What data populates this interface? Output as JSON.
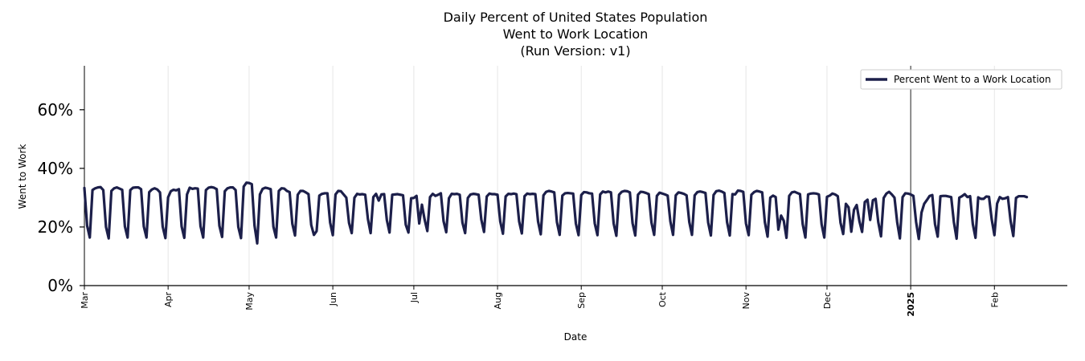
{
  "chart_data": {
    "type": "line",
    "title_lines": [
      "Daily Percent of United States Population",
      "Went to Work Location",
      "(Run Version: v1)"
    ],
    "xlabel": "Date",
    "ylabel": "Went to Work",
    "ylim": [
      0,
      75
    ],
    "y_ticks": [
      {
        "value": 0,
        "label": "0%"
      },
      {
        "value": 20,
        "label": "20%"
      },
      {
        "value": 40,
        "label": "40%"
      },
      {
        "value": 60,
        "label": "60%"
      }
    ],
    "x_range_days": [
      0,
      364
    ],
    "x_ticks": [
      {
        "day": 0,
        "label": "Mar"
      },
      {
        "day": 31,
        "label": "Apr"
      },
      {
        "day": 61,
        "label": "May"
      },
      {
        "day": 92,
        "label": "Jun"
      },
      {
        "day": 122,
        "label": "Jul"
      },
      {
        "day": 153,
        "label": "Aug"
      },
      {
        "day": 184,
        "label": "Sep"
      },
      {
        "day": 214,
        "label": "Oct"
      },
      {
        "day": 245,
        "label": "Nov"
      },
      {
        "day": 275,
        "label": "Dec"
      },
      {
        "day": 306,
        "label": "2025",
        "bold": true
      },
      {
        "day": 337,
        "label": "Feb"
      }
    ],
    "vline_day": 306,
    "grid_x": true,
    "legend": {
      "position": "top-right"
    },
    "series": [
      {
        "name": "Percent Went to a Work Location",
        "color": "#1c1f4a",
        "values": [
          33.3,
          20.5,
          16.4,
          32.6,
          33.2,
          33.5,
          33.6,
          32.6,
          20.0,
          16.1,
          32.3,
          33.2,
          33.5,
          33.1,
          32.7,
          20.2,
          16.4,
          32.6,
          33.4,
          33.5,
          33.5,
          32.9,
          20.2,
          16.4,
          31.9,
          32.8,
          33.2,
          32.8,
          31.8,
          20.1,
          16.2,
          30.1,
          32.2,
          32.7,
          32.5,
          32.9,
          20.2,
          16.3,
          31.1,
          33.4,
          33.0,
          33.2,
          33.1,
          20.3,
          16.4,
          32.6,
          33.4,
          33.6,
          33.4,
          32.9,
          20.4,
          16.6,
          32.2,
          33.2,
          33.5,
          33.5,
          32.6,
          20.0,
          16.2,
          33.8,
          35.1,
          35.0,
          34.6,
          20.5,
          14.4,
          31.1,
          33.0,
          33.4,
          33.2,
          32.9,
          20.1,
          16.4,
          32.3,
          33.2,
          33.1,
          32.3,
          31.9,
          21.1,
          17.1,
          31.0,
          32.3,
          32.3,
          31.8,
          31.2,
          20.7,
          17.3,
          18.6,
          30.7,
          31.3,
          31.5,
          31.5,
          21.5,
          17.2,
          31.1,
          32.3,
          32.2,
          31.1,
          30.0,
          21.4,
          17.9,
          30.0,
          31.3,
          31.1,
          31.2,
          31.0,
          22.7,
          17.9,
          30.2,
          31.3,
          29.0,
          31.1,
          31.2,
          22.4,
          18.1,
          31.0,
          31.1,
          31.2,
          31.0,
          30.8,
          20.8,
          18.1,
          29.8,
          29.9,
          30.6,
          21.2,
          27.6,
          22.5,
          18.6,
          30.2,
          31.3,
          30.6,
          31.0,
          31.5,
          22.0,
          18.2,
          29.8,
          31.3,
          31.2,
          31.3,
          31.0,
          21.5,
          17.9,
          29.9,
          31.1,
          31.3,
          31.2,
          31.0,
          22.5,
          18.3,
          30.4,
          31.4,
          31.2,
          31.2,
          31.0,
          21.9,
          17.7,
          30.4,
          31.3,
          31.2,
          31.4,
          31.2,
          21.9,
          17.8,
          30.5,
          31.4,
          31.2,
          31.3,
          31.2,
          21.9,
          17.5,
          30.8,
          32.0,
          32.3,
          32.1,
          31.8,
          21.6,
          17.3,
          30.7,
          31.5,
          31.6,
          31.5,
          31.4,
          21.2,
          17.2,
          30.9,
          31.9,
          31.8,
          31.5,
          31.4,
          21.2,
          17.2,
          31.1,
          32.1,
          31.8,
          32.1,
          31.8,
          21.2,
          17.0,
          31.0,
          32.0,
          32.3,
          32.2,
          31.8,
          21.3,
          17.1,
          31.0,
          32.0,
          31.9,
          31.6,
          31.2,
          21.5,
          17.3,
          30.6,
          31.7,
          31.4,
          31.1,
          30.7,
          21.9,
          17.3,
          30.8,
          31.8,
          31.6,
          31.3,
          30.8,
          21.7,
          17.3,
          30.8,
          31.9,
          32.1,
          31.9,
          31.6,
          21.5,
          17.1,
          30.9,
          32.2,
          32.4,
          32.1,
          31.6,
          21.6,
          17.1,
          31.2,
          31.1,
          32.4,
          32.3,
          32.0,
          21.2,
          17.2,
          31.0,
          31.9,
          32.3,
          32.1,
          31.8,
          21.6,
          16.7,
          30.0,
          30.7,
          30.2,
          19.1,
          23.9,
          22.1,
          16.3,
          30.6,
          31.8,
          32.0,
          31.6,
          31.2,
          21.0,
          16.4,
          31.1,
          31.4,
          31.5,
          31.4,
          31.1,
          21.0,
          16.4,
          30.3,
          30.7,
          31.4,
          31.1,
          30.5,
          21.5,
          17.6,
          27.9,
          26.7,
          18.4,
          25.9,
          27.5,
          22.0,
          18.3,
          28.5,
          29.3,
          22.4,
          29.1,
          29.6,
          21.6,
          16.8,
          29.9,
          31.4,
          32.0,
          31.1,
          30.0,
          21.6,
          16.1,
          30.2,
          31.5,
          31.4,
          31.1,
          30.6,
          21.7,
          15.9,
          24.9,
          27.9,
          29.2,
          30.6,
          30.9,
          21.0,
          16.7,
          30.5,
          30.6,
          30.6,
          30.4,
          30.2,
          21.6,
          16.0,
          30.0,
          30.5,
          31.2,
          30.2,
          30.5,
          21.0,
          16.3,
          30.1,
          29.6,
          29.6,
          30.4,
          30.3,
          22.6,
          17.2,
          28.0,
          30.2,
          29.6,
          29.8,
          30.2,
          22.0,
          16.9,
          29.9,
          30.5,
          30.5,
          30.5,
          30.2
        ]
      }
    ]
  }
}
